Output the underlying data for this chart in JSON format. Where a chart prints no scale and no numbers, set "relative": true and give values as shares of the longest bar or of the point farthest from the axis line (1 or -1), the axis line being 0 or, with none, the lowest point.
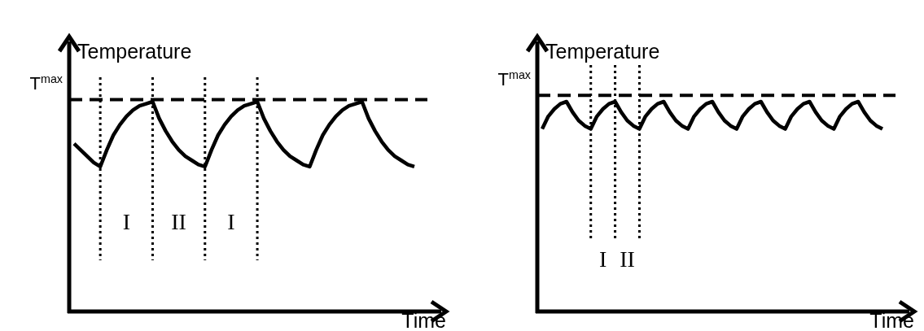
{
  "chart_data": [
    {
      "type": "line",
      "relative": true,
      "ylabel": "Temperature",
      "xlabel": "Time",
      "line_style": "solid",
      "categories": [
        null,
        null,
        null,
        null,
        null,
        null,
        null,
        null,
        null,
        null,
        null,
        null,
        null,
        null,
        null,
        null,
        null,
        null,
        null,
        null,
        null,
        null,
        null,
        null,
        null,
        null,
        null,
        null,
        null,
        null,
        null,
        null,
        null,
        null,
        null,
        null,
        null,
        null,
        null,
        null,
        null,
        null,
        null,
        null,
        null,
        null,
        null,
        null,
        null,
        null,
        null,
        null,
        null
      ],
      "series": [
        {
          "color": "#000000",
          "values": [
            0.8,
            0.77,
            0.74,
            0.71,
            0.69,
            0.77,
            0.84,
            0.89,
            0.93,
            0.96,
            0.98,
            0.99,
            1.0,
            0.92,
            0.86,
            0.81,
            0.77,
            0.74,
            0.72,
            0.7,
            0.69,
            0.77,
            0.84,
            0.89,
            0.93,
            0.96,
            0.98,
            0.99,
            1.0,
            0.92,
            0.86,
            0.81,
            0.77,
            0.74,
            0.72,
            0.7,
            0.69,
            0.77,
            0.84,
            0.89,
            0.93,
            0.96,
            0.98,
            0.99,
            1.0,
            0.92,
            0.86,
            0.81,
            0.77,
            0.74,
            0.72,
            0.7,
            0.69
          ]
        }
      ],
      "ref_lines": [
        {
          "axis": "y",
          "value": 1.01,
          "label": "T$^{max}$",
          "line_style": "dashed",
          "color": "#000000"
        }
      ],
      "grid": "x",
      "annotations": [
        "I",
        "II",
        "I"
      ]
    },
    {
      "type": "line",
      "relative": true,
      "ylabel": "Temperature",
      "xlabel": "Time",
      "line_style": "solid",
      "categories": [
        null,
        null,
        null,
        null,
        null,
        null,
        null,
        null,
        null,
        null,
        null,
        null,
        null,
        null,
        null,
        null,
        null,
        null,
        null,
        null,
        null,
        null,
        null,
        null,
        null,
        null,
        null,
        null,
        null,
        null,
        null,
        null,
        null,
        null,
        null,
        null,
        null,
        null,
        null,
        null,
        null,
        null,
        null,
        null,
        null,
        null,
        null,
        null,
        null,
        null,
        null,
        null,
        null,
        null,
        null,
        null,
        null
      ],
      "series": [
        {
          "color": "#000000",
          "values": [
            0.87,
            0.93,
            0.965,
            0.99,
            1,
            0.95,
            0.91,
            0.885,
            0.87,
            0.93,
            0.965,
            0.99,
            1,
            0.95,
            0.91,
            0.885,
            0.87,
            0.93,
            0.965,
            0.99,
            1,
            0.95,
            0.91,
            0.885,
            0.87,
            0.93,
            0.965,
            0.99,
            1,
            0.95,
            0.91,
            0.885,
            0.87,
            0.93,
            0.965,
            0.99,
            1,
            0.95,
            0.91,
            0.885,
            0.87,
            0.93,
            0.965,
            0.99,
            1,
            0.95,
            0.91,
            0.885,
            0.87,
            0.93,
            0.965,
            0.99,
            1,
            0.95,
            0.91,
            0.885,
            0.87
          ]
        }
      ],
      "ref_lines": [
        {
          "axis": "y",
          "value": 1.03,
          "label": "T$^{max}$",
          "line_style": "dashed",
          "color": "#000000"
        }
      ],
      "grid": "x",
      "annotations": [
        "I",
        "II"
      ]
    }
  ]
}
